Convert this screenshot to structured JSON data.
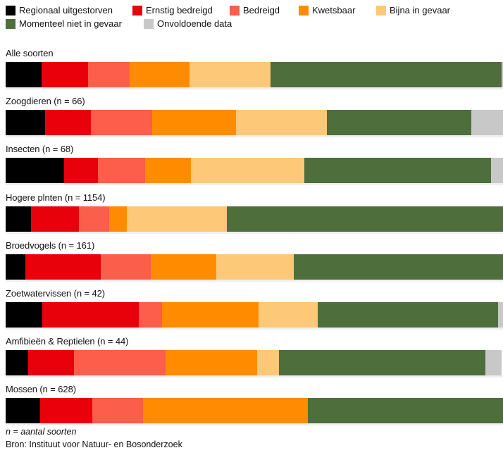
{
  "chart_data": {
    "type": "bar",
    "orientation": "horizontal",
    "stacked": true,
    "normalized": true,
    "categories": [
      "Alle soorten",
      "Zoogdieren (n = 66)",
      "Insecten (n = 68)",
      "Hogere plnten (n = 1154)",
      "Broedvogels (n = 161)",
      "Zoetwatervissen (n = 42)",
      "Amfibieën & Reptielen (n = 44)",
      "Mossen (n = 628)"
    ],
    "series": [
      {
        "name": "Regionaal uitgestorven",
        "color": "#000000",
        "values": [
          7.2,
          7.9,
          11.8,
          5.1,
          3.9,
          7.3,
          4.6,
          7.0
        ]
      },
      {
        "name": "Ernstig bedreigd",
        "color": "#e8000b",
        "values": [
          9.4,
          9.3,
          6.8,
          9.6,
          15.2,
          19.4,
          9.1,
          10.4
        ]
      },
      {
        "name": "Bedreigd",
        "color": "#fb5e4a",
        "values": [
          8.3,
          12.2,
          9.5,
          6.1,
          10.1,
          4.7,
          18.4,
          10.2
        ]
      },
      {
        "name": "Kwetsbaar",
        "color": "#ff8c00",
        "values": [
          12.0,
          16.9,
          9.2,
          3.5,
          13.2,
          19.4,
          18.4,
          33.1
        ]
      },
      {
        "name": "Bijna in gevaar",
        "color": "#fdc878",
        "values": [
          16.3,
          18.3,
          22.8,
          20.2,
          15.5,
          12.0,
          4.4,
          0
        ]
      },
      {
        "name": "Momenteel niet in gevaar",
        "color": "#4e6e3b",
        "values": [
          46.5,
          29.0,
          37.5,
          55.5,
          42.1,
          36.2,
          41.6,
          39.3
        ]
      },
      {
        "name": "Onvoldoende data",
        "color": "#c8c8c8",
        "values": [
          0.3,
          6.4,
          2.4,
          0,
          0,
          1.0,
          3.1,
          0
        ]
      }
    ],
    "xlim": [
      0,
      100
    ],
    "legend": "top",
    "grid": false
  },
  "footer": {
    "note": "n = aantal soorten",
    "source": "Bron: Instituut voor Natuur- en Bosonderzoek"
  }
}
